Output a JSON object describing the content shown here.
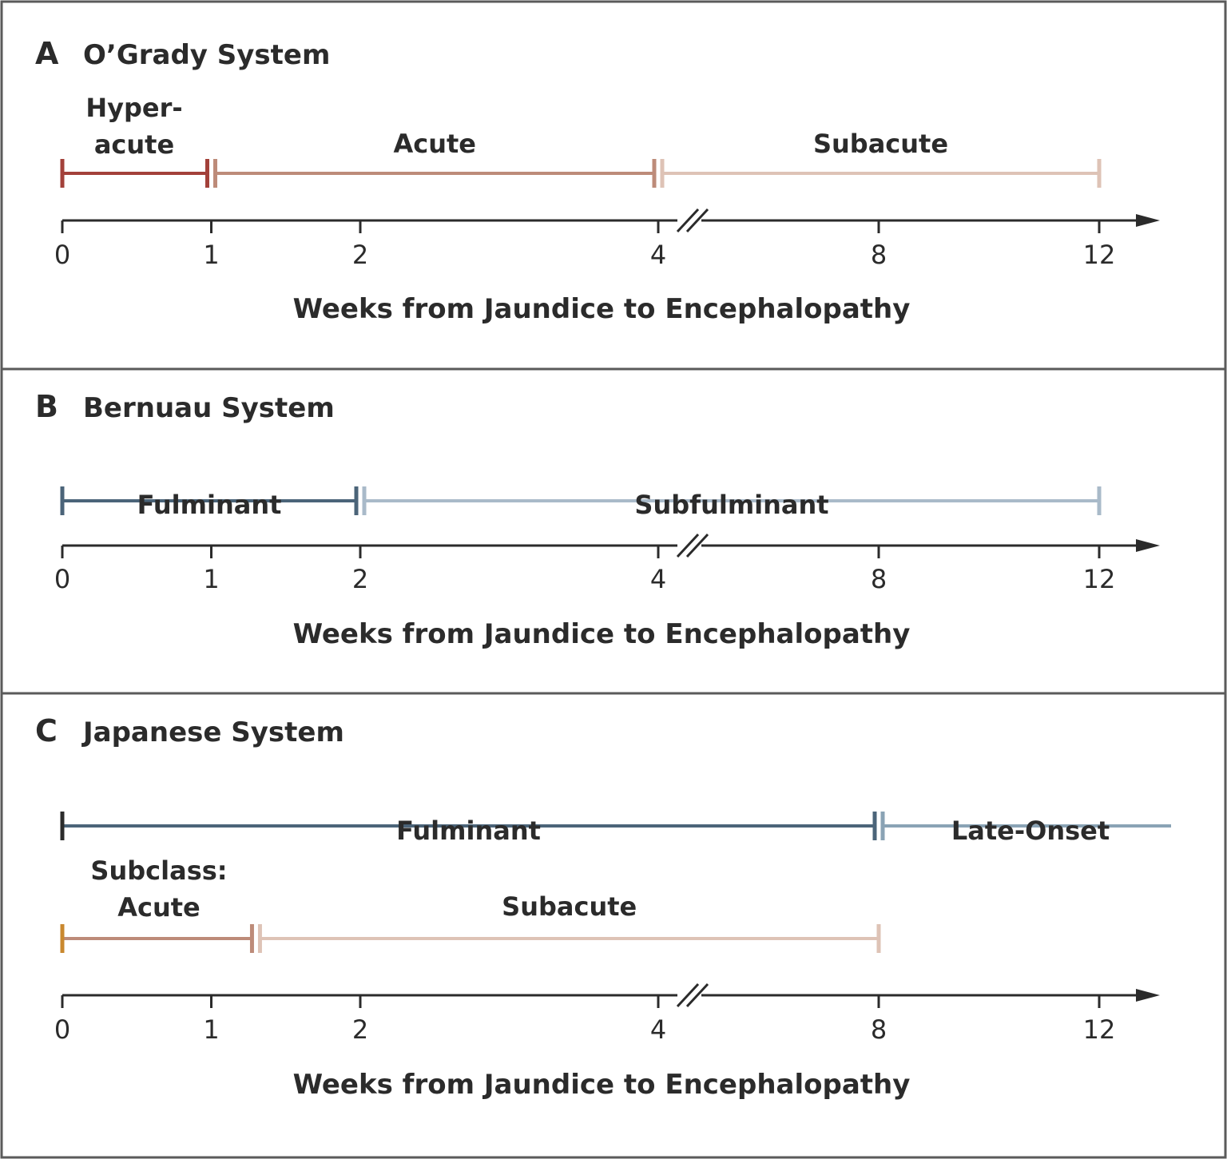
{
  "axis_label": "Weeks from Jaundice to Encephalopathy",
  "panels": [
    {
      "letter": "A",
      "title": "O’Grady System",
      "tick_labels": [
        "0",
        "1",
        "2",
        "4",
        "8",
        "12"
      ],
      "rows": [
        {
          "segments": [
            {
              "label_lines": [
                "Hyper-",
                "acute"
              ],
              "start": 0,
              "end": 1,
              "color": "#a3413a"
            },
            {
              "label_lines": [
                "Acute"
              ],
              "start": 1,
              "end": 4,
              "color": "#bd8b79"
            },
            {
              "label_lines": [
                "Subacute"
              ],
              "start": 4,
              "end": 12,
              "color": "#dec3b6"
            }
          ]
        }
      ]
    },
    {
      "letter": "B",
      "title": "Bernuau System",
      "tick_labels": [
        "0",
        "1",
        "2",
        "4",
        "8",
        "12"
      ],
      "rows": [
        {
          "segments": [
            {
              "label_lines": [
                "Fulminant"
              ],
              "start": 0,
              "end": 2,
              "color": "#4b6479"
            },
            {
              "label_lines": [
                "Subfulminant"
              ],
              "start": 2,
              "end": 12,
              "color": "#a9bac9"
            }
          ]
        }
      ]
    },
    {
      "letter": "C",
      "title": "Japanese System",
      "tick_labels": [
        "0",
        "1",
        "2",
        "4",
        "8",
        "12"
      ],
      "rows": [
        {
          "segments": [
            {
              "label_lines": [
                "Fulminant"
              ],
              "start": 0,
              "end": 8,
              "color": "#4b6479",
              "start_cap_color": "#2b2b2b"
            },
            {
              "label_lines": [
                "Late-Onset"
              ],
              "start": 8,
              "end": 24,
              "color": "#8aa3b5",
              "open_end": true
            }
          ]
        },
        {
          "segments": [
            {
              "label_lines": [
                "Subclass:",
                "Acute"
              ],
              "start": 0,
              "end": 1.3,
              "color": "#bd8b79",
              "start_cap_color": "#c9882e"
            },
            {
              "label_lines": [
                "Subacute"
              ],
              "start": 1.3,
              "end": 8,
              "color": "#dec3b6"
            }
          ]
        }
      ]
    }
  ]
}
